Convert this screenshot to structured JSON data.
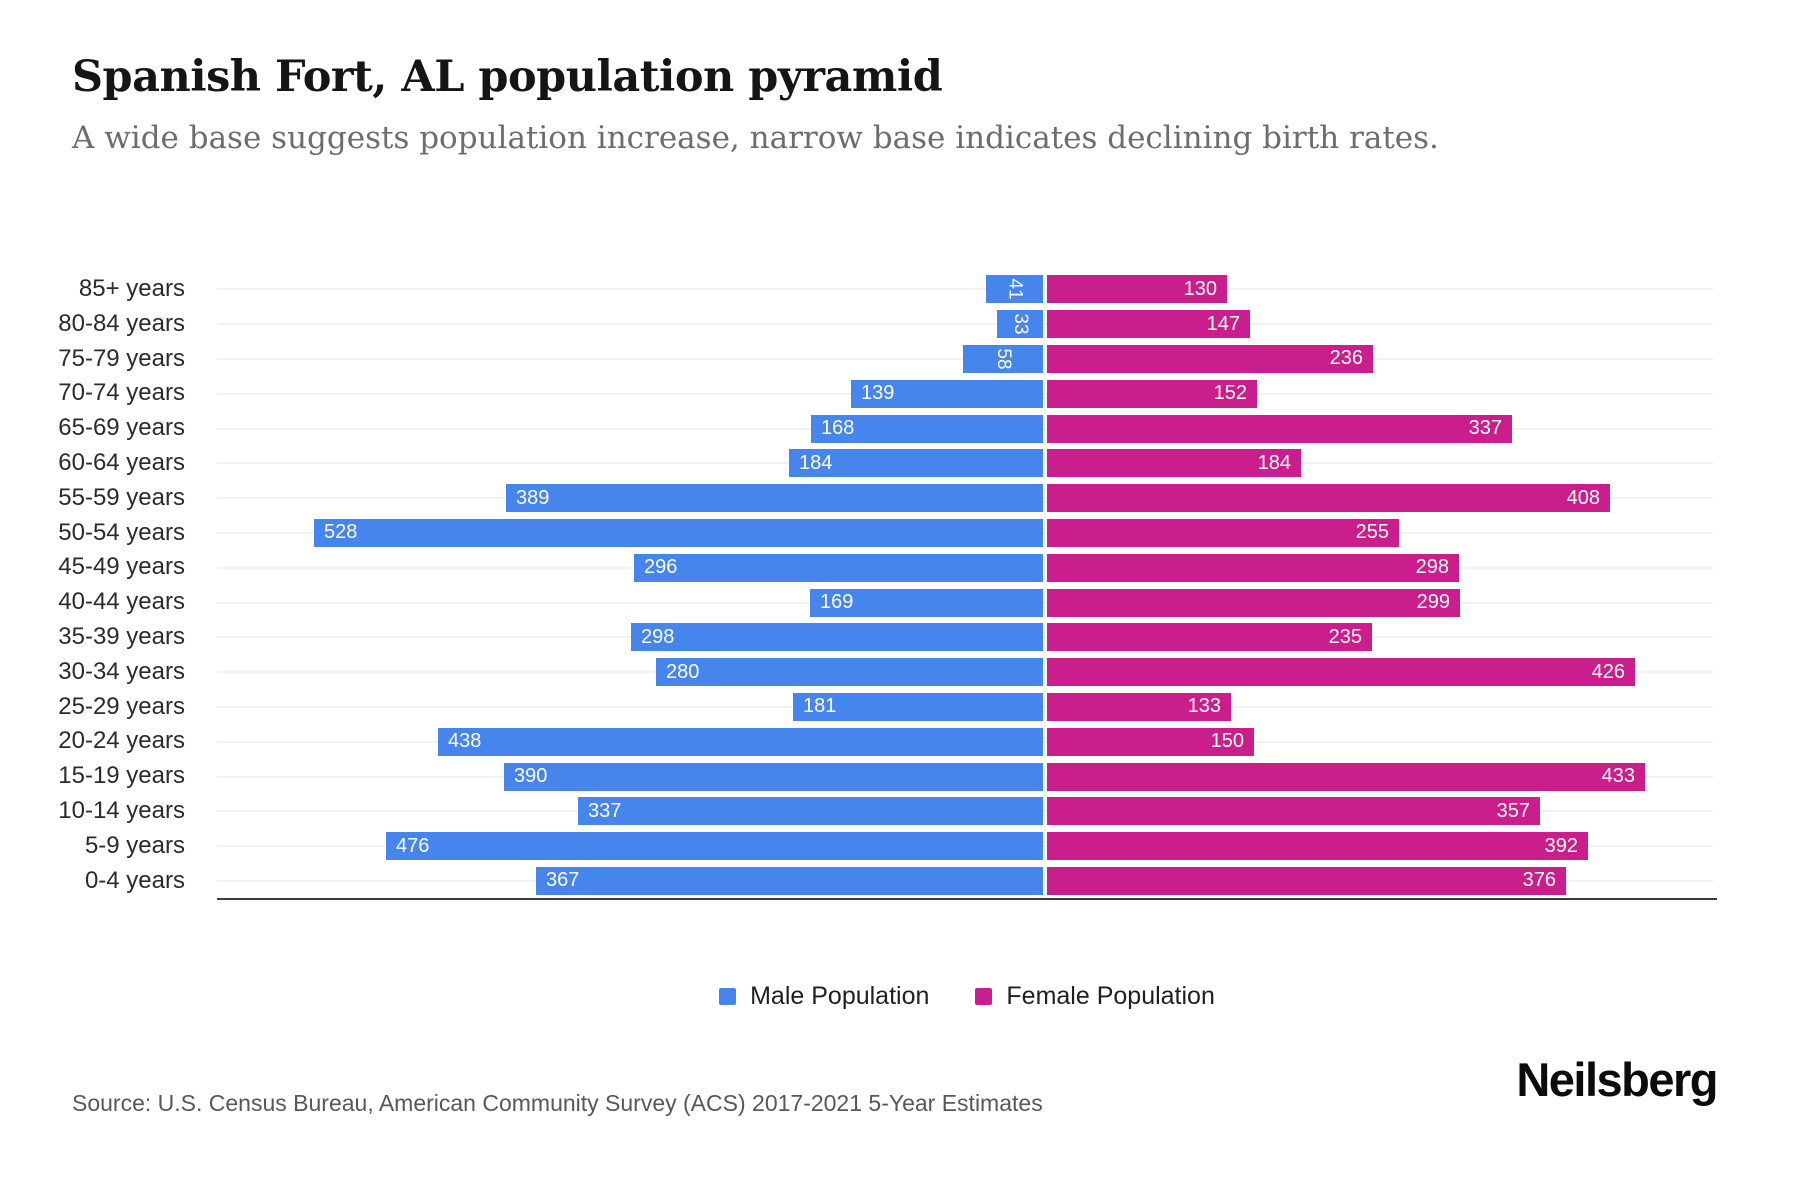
{
  "header": {
    "title": "Spanish Fort, AL population pyramid",
    "subtitle": "A wide base suggests population increase, narrow base indicates declining birth rates."
  },
  "chart_data": {
    "type": "bar",
    "variant": "population-pyramid",
    "orientation": "horizontal",
    "categories": [
      "85+ years",
      "80-84 years",
      "75-79 years",
      "70-74 years",
      "65-69 years",
      "60-64 years",
      "55-59 years",
      "50-54 years",
      "45-49 years",
      "40-44 years",
      "35-39 years",
      "30-34 years",
      "25-29 years",
      "20-24 years",
      "15-19 years",
      "10-14 years",
      "5-9 years",
      "0-4 years"
    ],
    "series": [
      {
        "name": "Male Population",
        "side": "left",
        "color": "#4685EC",
        "values": [
          41,
          33,
          58,
          139,
          168,
          184,
          389,
          528,
          296,
          169,
          298,
          280,
          181,
          438,
          390,
          337,
          476,
          367
        ]
      },
      {
        "name": "Female Population",
        "side": "right",
        "color": "#C91E8C",
        "values": [
          130,
          147,
          236,
          152,
          337,
          184,
          408,
          255,
          298,
          299,
          235,
          426,
          133,
          150,
          433,
          357,
          392,
          376
        ]
      }
    ],
    "value_labels": "inside-bar-ends, white, rotated 90deg when bar too short",
    "grid": "light horizontal line per category row",
    "legend_position": "bottom-center",
    "axis": {
      "baseline": "bottom",
      "tick_labels_shown": false
    }
  },
  "footer": {
    "source": "Source: U.S. Census Bureau, American Community Survey (ACS) 2017-2021 5-Year Estimates",
    "brand": "Neilsberg"
  }
}
